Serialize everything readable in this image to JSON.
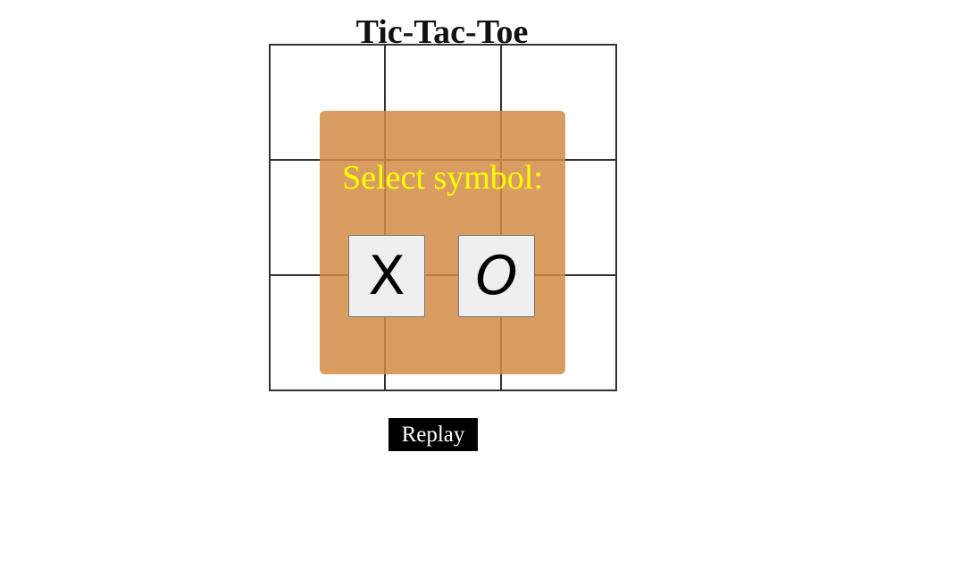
{
  "app": {
    "title": "Tic-Tac-Toe"
  },
  "board": {
    "cells": [
      "",
      "",
      "",
      "",
      "",
      "",
      "",
      "",
      ""
    ]
  },
  "modal": {
    "prompt": "Select symbol:",
    "options": [
      "X",
      "O"
    ],
    "background_color": "#d79a62",
    "text_color": "#ffff00"
  },
  "controls": {
    "replay_label": "Replay"
  }
}
